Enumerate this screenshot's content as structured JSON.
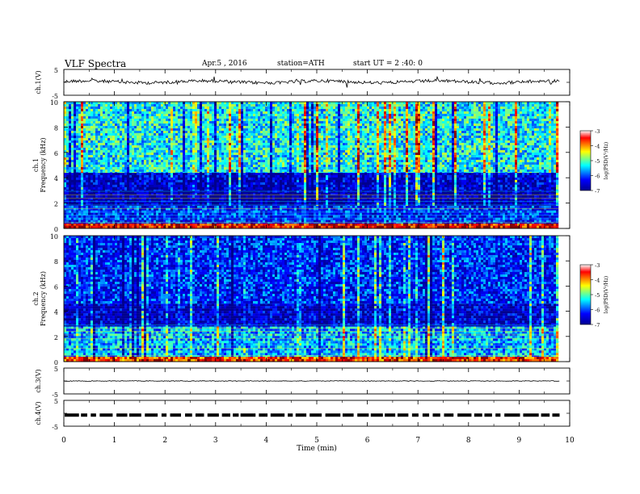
{
  "header": {
    "title": "VLF  Spectra",
    "date": "Apr.5 , 2016",
    "station": "station=ATH",
    "start": "start  UT =  2 :40: 0"
  },
  "colors": {
    "jet": [
      "#00008f",
      "#0000ff",
      "#00ffff",
      "#ffff00",
      "#ff0000",
      "#800000"
    ],
    "trace": "#000000",
    "background": "#ffffff"
  },
  "chart_data": [
    {
      "type": "line",
      "panel": "ch1-waveform",
      "ylabel": "ch.1(V)",
      "y_ticks": [
        "5",
        "-5"
      ],
      "ylim": [
        -5,
        5
      ],
      "xlim": [
        0,
        10
      ],
      "series": [
        {
          "approx_level": 0.2,
          "x_end": 9.8
        }
      ]
    },
    {
      "type": "heatmap",
      "panel": "ch1-spectrogram",
      "ylabel": "ch.1\nFrequency  (kHz)",
      "y_ticks": [
        "0",
        "2",
        "4",
        "6",
        "8",
        "10"
      ],
      "ylim": [
        0,
        10
      ],
      "xlim": [
        0,
        10
      ],
      "x_end": 9.8,
      "colorbar": {
        "label": "log(PSD(V²/Hz)",
        "ticks": [
          "-3",
          "-4",
          "-5",
          "-6",
          "-7"
        ],
        "range": [
          -7,
          -3
        ]
      },
      "bands_khz": [
        [
          0,
          0.4,
          -3.4
        ],
        [
          0.4,
          1.8,
          -6.2
        ],
        [
          1.8,
          3.0,
          -6.8
        ],
        [
          3.0,
          4.4,
          -6.6
        ],
        [
          4.4,
          10,
          -5.3
        ]
      ]
    },
    {
      "type": "heatmap",
      "panel": "ch2-spectrogram",
      "ylabel": "ch.2\nFrequency  (kHz)",
      "y_ticks": [
        "0",
        "2",
        "4",
        "6",
        "8",
        "10"
      ],
      "ylim": [
        0,
        10
      ],
      "xlim": [
        0,
        10
      ],
      "x_end": 9.8,
      "colorbar": {
        "label": "log(PSD(V²/Hz)",
        "ticks": [
          "-3",
          "-4",
          "-5",
          "-6",
          "-7"
        ],
        "range": [
          -7,
          -3
        ]
      },
      "bands_khz": [
        [
          0,
          0.4,
          -3.6
        ],
        [
          0.4,
          2.8,
          -5.6
        ],
        [
          2.8,
          4.6,
          -6.6
        ],
        [
          4.6,
          10,
          -6.2
        ]
      ]
    },
    {
      "type": "line",
      "panel": "ch3-waveform",
      "ylabel": "ch.3(V)",
      "y_ticks": [
        "5",
        "-5"
      ],
      "ylim": [
        -5,
        5
      ],
      "xlim": [
        0,
        10
      ],
      "series": [
        {
          "approx_level": 0.0,
          "x_end": 9.8
        }
      ]
    },
    {
      "type": "line",
      "panel": "ch4-waveform",
      "ylabel": "ch.4(V)",
      "y_ticks": [
        "5",
        "-5"
      ],
      "ylim": [
        -5,
        5
      ],
      "xlim": [
        0,
        10
      ],
      "series": [
        {
          "approx_level": -0.7,
          "x_end": 9.8,
          "style": "dashed"
        }
      ]
    }
  ],
  "x_axis": {
    "label": "Time  (min)",
    "ticks": [
      "0",
      "1",
      "2",
      "3",
      "4",
      "5",
      "6",
      "7",
      "8",
      "9",
      "10"
    ]
  }
}
